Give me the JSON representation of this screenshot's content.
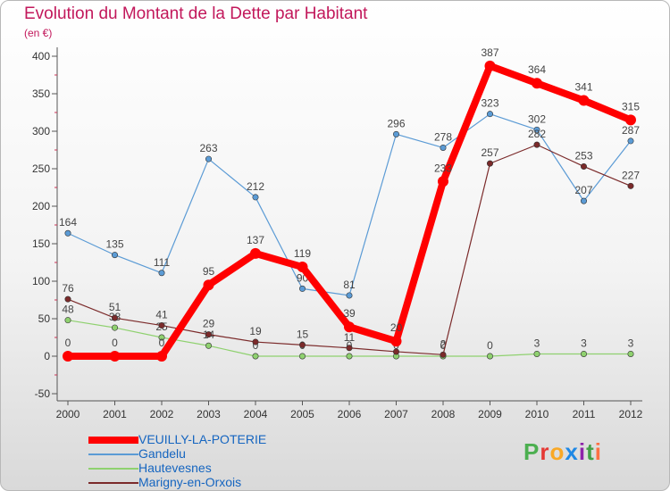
{
  "title": "Evolution du Montant de la Dette par Habitant",
  "subtitle": "(en €)",
  "logo": {
    "text": "Proxiti",
    "colors": [
      "#4caf50",
      "#e53935",
      "#f9a825",
      "#1e88e5",
      "#8e24aa",
      "#43a047",
      "#ff7043"
    ]
  },
  "chart_data": {
    "type": "line",
    "title": "Evolution du Montant de la Dette par Habitant",
    "subtitle": "(en €)",
    "x": [
      "2000",
      "2001",
      "2002",
      "2003",
      "2004",
      "2005",
      "2006",
      "2007",
      "2008",
      "2009",
      "2010",
      "2011",
      "2012"
    ],
    "yticks": [
      "400",
      "350",
      "300",
      "250",
      "200",
      "150",
      "100",
      "50",
      "0",
      "-50"
    ],
    "ylim": [
      -50,
      400
    ],
    "grid": false,
    "legend_position": "bottom-left",
    "series": [
      {
        "name": "Gandelu",
        "color": "#5b9bd5",
        "width": 1.2,
        "values": [
          164,
          135,
          111,
          263,
          212,
          90,
          81,
          296,
          278,
          323,
          302,
          207,
          287
        ],
        "labels": [
          "164",
          "135",
          "111",
          "263",
          "212",
          "90",
          "81",
          "296",
          "278",
          "323",
          "302",
          "207",
          "287"
        ]
      },
      {
        "name": "Hautevesnes",
        "color": "#8fd16f",
        "width": 1.2,
        "values": [
          48,
          38,
          25,
          14,
          0,
          0,
          0,
          0,
          0,
          0,
          3,
          3,
          3
        ],
        "labels": [
          "48",
          "38",
          "25",
          "14",
          "0",
          "0",
          "0",
          "0",
          "0",
          "0",
          "3",
          "3",
          "3"
        ]
      },
      {
        "name": "Marigny-en-Orxois",
        "color": "#7b2a2a",
        "width": 1.2,
        "values": [
          76,
          51,
          41,
          29,
          19,
          15,
          11,
          6,
          2,
          257,
          282,
          253,
          227
        ],
        "labels": [
          "76",
          "51",
          "41",
          "29",
          "19",
          "15",
          "11",
          "6",
          "2",
          "257",
          "282",
          "253",
          "227"
        ]
      },
      {
        "name": "VEUILLY-LA-POTERIE",
        "color": "#ff0000",
        "width": 8,
        "values": [
          0,
          0,
          0,
          95,
          137,
          119,
          39,
          20,
          233,
          387,
          364,
          341,
          315
        ],
        "labels": [
          "0",
          "0",
          "0",
          "95",
          "137",
          "119",
          "39",
          "20",
          "233",
          "387",
          "364",
          "341",
          "315"
        ]
      }
    ],
    "legend": [
      {
        "name": "VEUILLY-LA-POTERIE",
        "color": "#ff0000",
        "width": 8
      },
      {
        "name": "Gandelu",
        "color": "#5b9bd5",
        "width": 2
      },
      {
        "name": "Hautevesnes",
        "color": "#8fd16f",
        "width": 2
      },
      {
        "name": "Marigny-en-Orxois",
        "color": "#7b2a2a",
        "width": 2
      }
    ]
  }
}
